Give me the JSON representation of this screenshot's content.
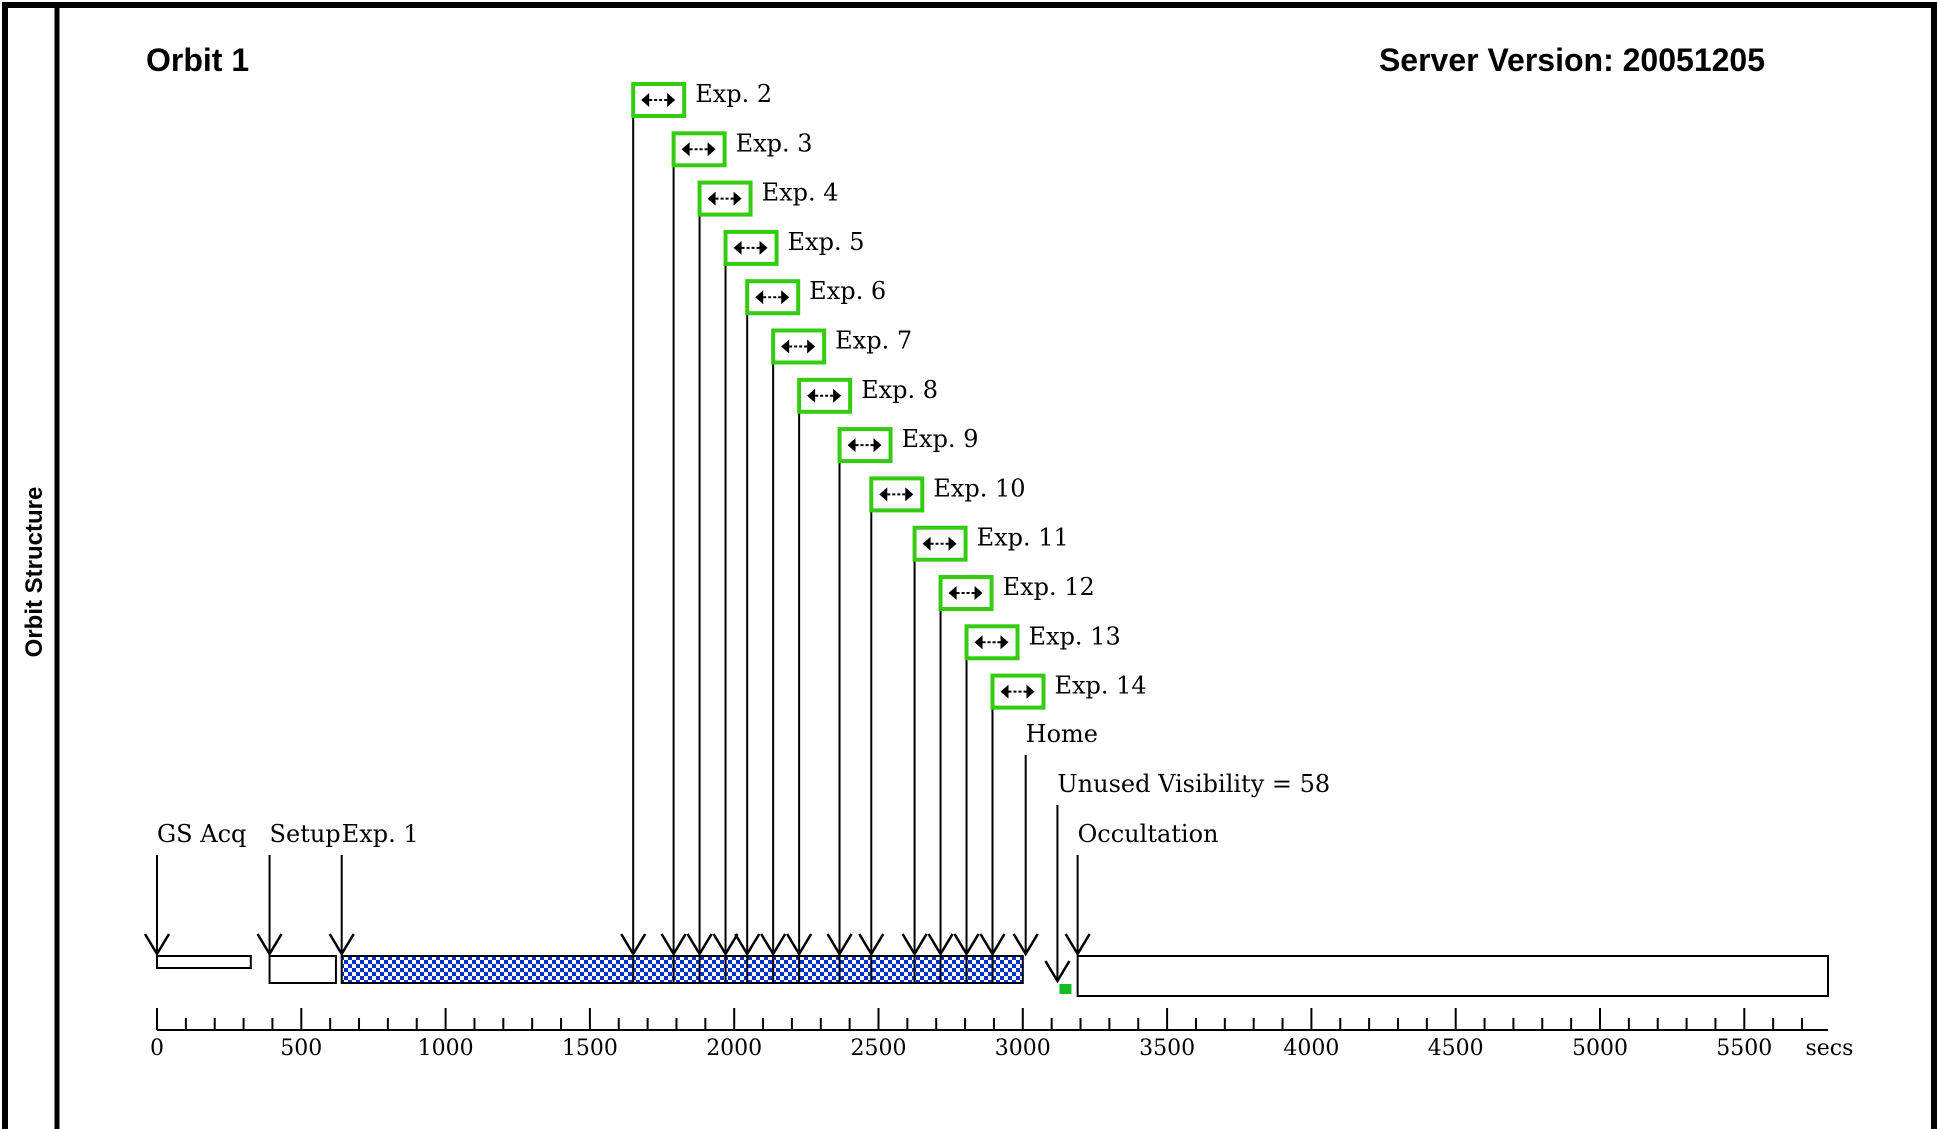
{
  "side_label": "Orbit Structure",
  "title_left": "Orbit 1",
  "title_right": "Server Version: 20051205",
  "axis": {
    "min": 0,
    "max": 5800,
    "unit_label": "secs",
    "ticks": [
      0,
      500,
      1000,
      1500,
      2000,
      2500,
      3000,
      3500,
      4000,
      4500,
      5000,
      5500
    ]
  },
  "bottom_labels": [
    {
      "text": "GS Acq",
      "t": 0
    },
    {
      "text": "Setup",
      "t": 390
    },
    {
      "text": "Exp. 1",
      "t": 640
    },
    {
      "text": "Occultation",
      "t": 3190
    }
  ],
  "home_label": {
    "text": "Home",
    "t": 3010
  },
  "unused_label": {
    "text": "Unused Visibility = 58",
    "t": 3120
  },
  "exposures": [
    {
      "text": "Exp. 2",
      "t": 1650
    },
    {
      "text": "Exp. 3",
      "t": 1790
    },
    {
      "text": "Exp. 4",
      "t": 1880
    },
    {
      "text": "Exp. 5",
      "t": 1970
    },
    {
      "text": "Exp. 6",
      "t": 2045
    },
    {
      "text": "Exp. 7",
      "t": 2135
    },
    {
      "text": "Exp. 8",
      "t": 2225
    },
    {
      "text": "Exp. 9",
      "t": 2365
    },
    {
      "text": "Exp. 10",
      "t": 2475
    },
    {
      "text": "Exp. 11",
      "t": 2625
    },
    {
      "text": "Exp. 12",
      "t": 2715
    },
    {
      "text": "Exp. 13",
      "t": 2805
    },
    {
      "text": "Exp. 14",
      "t": 2895
    }
  ],
  "timeline_segments": [
    {
      "kind": "guide-star-acquisition",
      "start": 0,
      "end": 325
    },
    {
      "kind": "setup",
      "start": 390,
      "end": 620
    },
    {
      "kind": "exposures",
      "start": 640,
      "end": 3000
    },
    {
      "kind": "occultation",
      "start": 3190,
      "end": 5790
    }
  ],
  "colors": {
    "exposure_fill": "#0033cc",
    "marker_border": "#33cc11",
    "unused_block": "#11bb22"
  },
  "icon": "double-arrow-icon"
}
